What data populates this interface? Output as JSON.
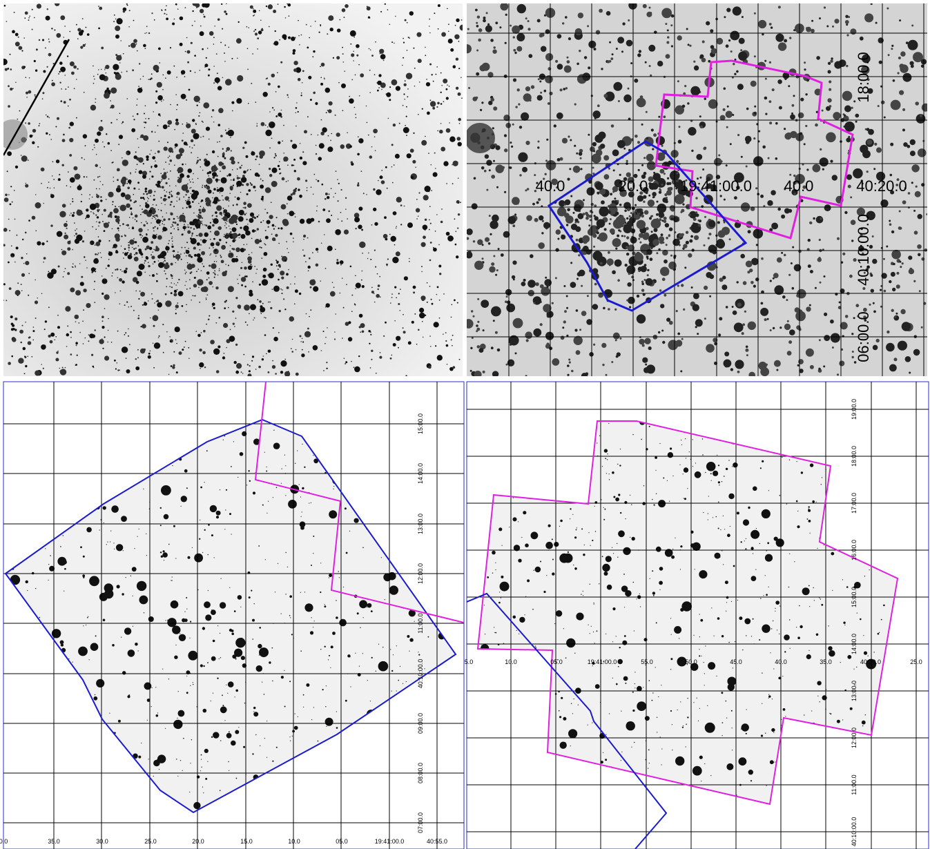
{
  "panels": [
    {
      "name": "raw-field"
    },
    {
      "name": "overview-grid",
      "x_labels": [
        "40.0",
        "20.0",
        "19:41:00.0",
        "40.0",
        "40:20.0"
      ],
      "y_labels": [
        "18:00.0",
        "40:10:00.0",
        "06:00.0"
      ]
    },
    {
      "name": "blue-footprint",
      "x_labels": [
        "0.0",
        "35.0",
        "30.0",
        "25.0",
        "20.0",
        "15.0",
        "10.0",
        "05.0",
        "19:41:00.0",
        "40:55.0"
      ],
      "y_labels": [
        "15:00.0",
        "14:00.0",
        "13:00.0",
        "12:00.0",
        "11:00.0",
        "40:10:00.0",
        "09:00.0",
        "08:00.0",
        "07:00.0"
      ]
    },
    {
      "name": "magenta-footprint",
      "x_labels": [
        "5.0",
        "10.0",
        "05.0",
        "19:41:00.0",
        "55.0",
        "50.0",
        "45.0",
        "40.0",
        "35.0",
        "40:30.0",
        "25.0"
      ],
      "y_labels": [
        "19:00.0",
        "18:00.0",
        "17:00.0",
        "16:00.0",
        "15:00.0",
        "14:00.0",
        "13:00.0",
        "12:00.0",
        "11:00.0",
        "40:10:00.0"
      ]
    }
  ]
}
